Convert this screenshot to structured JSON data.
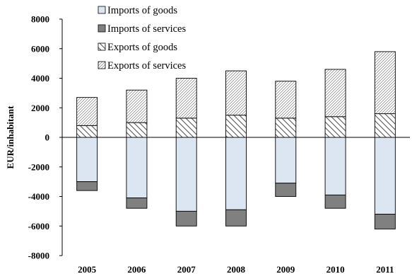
{
  "chart_data": {
    "type": "bar",
    "stacked": true,
    "categories": [
      "2005",
      "2006",
      "2007",
      "2008",
      "2009",
      "2010",
      "2011"
    ],
    "ylabel": "EUR/inhabitant",
    "ylim": [
      -8000,
      8000
    ],
    "yticks": [
      8000,
      6000,
      4000,
      2000,
      0,
      -2000,
      -4000,
      -6000,
      -8000
    ],
    "grid": false,
    "legend_position": "top-left",
    "series": [
      {
        "name": "Imports of goods",
        "values": [
          -3000,
          -4100,
          -5000,
          -4900,
          -3100,
          -3900,
          -5200
        ],
        "fill": "#dce6f2",
        "pattern": "none"
      },
      {
        "name": "Imports of services",
        "values": [
          -600,
          -700,
          -1000,
          -1100,
          -900,
          -900,
          -1000
        ],
        "fill": "#808080",
        "pattern": "none"
      },
      {
        "name": "Exports of goods",
        "values": [
          800,
          1000,
          1300,
          1500,
          1300,
          1400,
          1600
        ],
        "fill": "#ffffff",
        "pattern": "diagonal-wide"
      },
      {
        "name": "Exports of services",
        "values": [
          1900,
          2200,
          2700,
          3000,
          2500,
          3200,
          4200
        ],
        "fill": "#ffffff",
        "pattern": "diagonal-dense"
      }
    ]
  }
}
